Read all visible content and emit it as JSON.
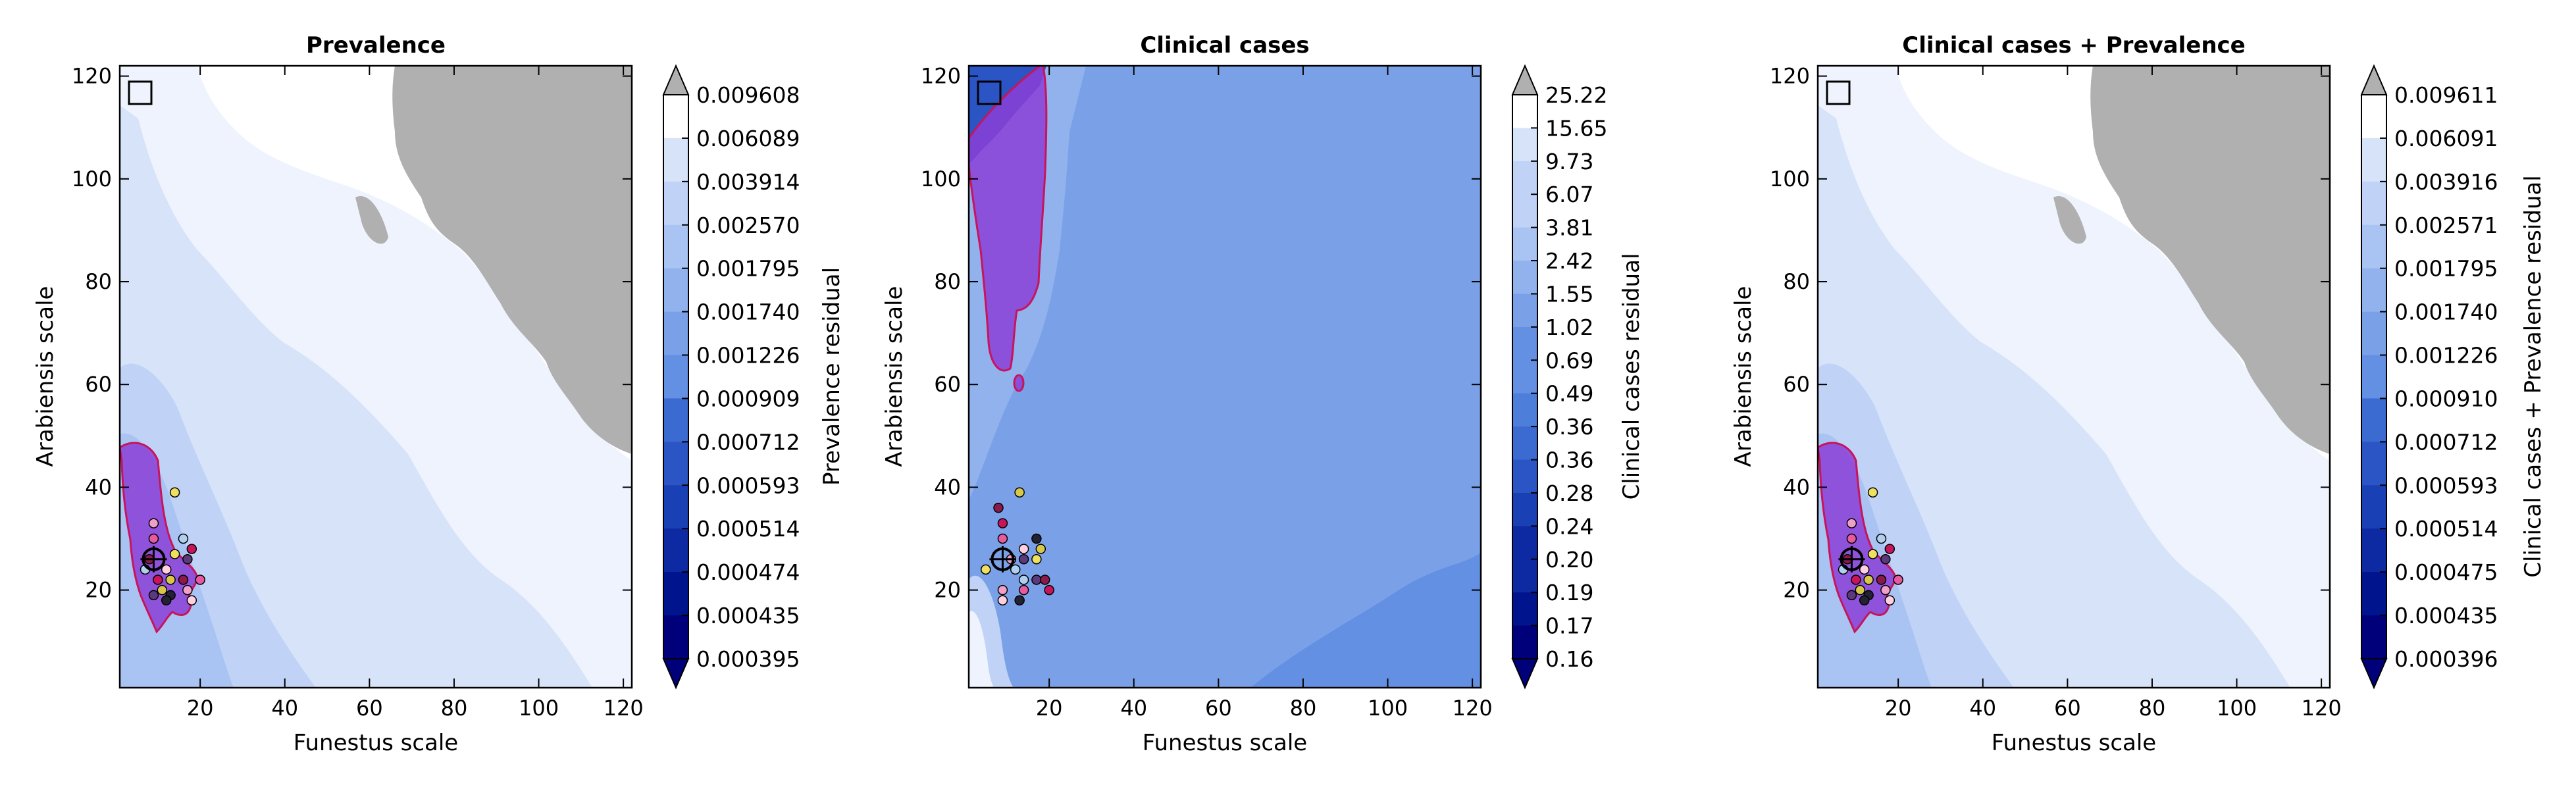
{
  "colors": {
    "levels": [
      "#00007a",
      "#00148e",
      "#0d2aa3",
      "#1a40b5",
      "#2b55c4",
      "#3b6ad0",
      "#4d7fda",
      "#6390e2",
      "#7aa1e8",
      "#92b2ed",
      "#a9c3f2",
      "#c0d3f6",
      "#d7e3f9",
      "#eef3fd"
    ],
    "out_of_range": "#b0b0b0",
    "purple_fill": "#8a3fd6",
    "purple_edge": "#c8145a",
    "white": "#ffffff"
  },
  "chart_data": [
    {
      "type": "contour",
      "title": "Prevalence",
      "xlabel": "Funestus scale",
      "ylabel": "Arabiensis scale",
      "xlim": [
        1,
        122
      ],
      "ylim": [
        1,
        122
      ],
      "xticks": [
        "20",
        "40",
        "60",
        "80",
        "100",
        "120"
      ],
      "yticks": [
        "20",
        "40",
        "60",
        "80",
        "100",
        "120"
      ],
      "colorbar": {
        "label": "Prevalence residual",
        "ticks": [
          "0.009608",
          "0.006089",
          "0.003914",
          "0.002570",
          "0.001795",
          "0.001740",
          "0.001226",
          "0.000909",
          "0.000712",
          "0.000593",
          "0.000514",
          "0.000474",
          "0.000435",
          "0.000395"
        ],
        "extend": "both"
      },
      "optimum_region": {
        "funestus_range": [
          3,
          22
        ],
        "arabiensis_range": [
          13,
          47
        ]
      },
      "best_point": [
        9,
        26
      ],
      "points": [
        [
          8,
          26
        ],
        [
          10,
          22
        ],
        [
          9,
          30
        ],
        [
          9,
          33
        ],
        [
          12,
          24
        ],
        [
          13,
          19
        ],
        [
          13,
          22
        ],
        [
          14,
          27
        ],
        [
          16,
          30
        ],
        [
          17,
          26
        ],
        [
          16,
          22
        ],
        [
          18,
          28
        ],
        [
          20,
          22
        ],
        [
          17,
          20
        ],
        [
          18,
          18
        ],
        [
          12,
          18
        ],
        [
          11,
          20
        ],
        [
          14,
          39
        ],
        [
          7,
          24
        ],
        [
          9,
          19
        ]
      ]
    },
    {
      "type": "contour",
      "title": "Clinical cases",
      "xlabel": "Funestus scale",
      "ylabel": "Arabiensis scale",
      "xlim": [
        1,
        122
      ],
      "ylim": [
        1,
        122
      ],
      "xticks": [
        "20",
        "40",
        "60",
        "80",
        "100",
        "120"
      ],
      "yticks": [
        "20",
        "40",
        "60",
        "80",
        "100",
        "120"
      ],
      "colorbar": {
        "label": "Clinical cases residual",
        "ticks": [
          "25.22",
          "15.65",
          "9.73",
          "6.07",
          "3.81",
          "2.42",
          "1.55",
          "1.02",
          "0.69",
          "0.49",
          "0.36",
          "0.36",
          "0.28",
          "0.24",
          "0.20",
          "0.19",
          "0.17",
          "0.16"
        ],
        "extend": "both"
      },
      "optimum_region": {
        "funestus_range": [
          4,
          18
        ],
        "arabiensis_range": [
          62,
          122
        ]
      },
      "best_point": [
        9,
        26
      ],
      "points": [
        [
          8,
          36
        ],
        [
          9,
          33
        ],
        [
          9,
          30
        ],
        [
          11,
          26
        ],
        [
          14,
          28
        ],
        [
          17,
          30
        ],
        [
          18,
          28
        ],
        [
          17,
          26
        ],
        [
          14,
          22
        ],
        [
          17,
          22
        ],
        [
          19,
          22
        ],
        [
          20,
          20
        ],
        [
          14,
          20
        ],
        [
          9,
          20
        ],
        [
          9,
          18
        ],
        [
          13,
          18
        ],
        [
          13,
          39
        ],
        [
          5,
          24
        ],
        [
          12,
          24
        ],
        [
          14,
          26
        ]
      ]
    },
    {
      "type": "contour",
      "title": "Clinical cases + Prevalence",
      "xlabel": "Funestus scale",
      "ylabel": "Arabiensis scale",
      "xlim": [
        1,
        122
      ],
      "ylim": [
        1,
        122
      ],
      "xticks": [
        "20",
        "40",
        "60",
        "80",
        "100",
        "120"
      ],
      "yticks": [
        "20",
        "40",
        "60",
        "80",
        "100",
        "120"
      ],
      "colorbar": {
        "label": "Clinical cases + Prevalence residual",
        "ticks": [
          "0.009611",
          "0.006091",
          "0.003916",
          "0.002571",
          "0.001795",
          "0.001740",
          "0.001226",
          "0.000910",
          "0.000712",
          "0.000593",
          "0.000514",
          "0.000475",
          "0.000435",
          "0.000396"
        ],
        "extend": "both"
      },
      "optimum_region": {
        "funestus_range": [
          3,
          22
        ],
        "arabiensis_range": [
          13,
          47
        ]
      },
      "best_point": [
        9,
        26
      ],
      "points": [
        [
          8,
          26
        ],
        [
          10,
          22
        ],
        [
          9,
          30
        ],
        [
          9,
          33
        ],
        [
          12,
          24
        ],
        [
          13,
          19
        ],
        [
          13,
          22
        ],
        [
          14,
          27
        ],
        [
          16,
          30
        ],
        [
          17,
          26
        ],
        [
          16,
          22
        ],
        [
          18,
          28
        ],
        [
          20,
          22
        ],
        [
          17,
          20
        ],
        [
          18,
          18
        ],
        [
          12,
          18
        ],
        [
          11,
          20
        ],
        [
          14,
          39
        ],
        [
          7,
          24
        ],
        [
          9,
          19
        ]
      ]
    }
  ]
}
